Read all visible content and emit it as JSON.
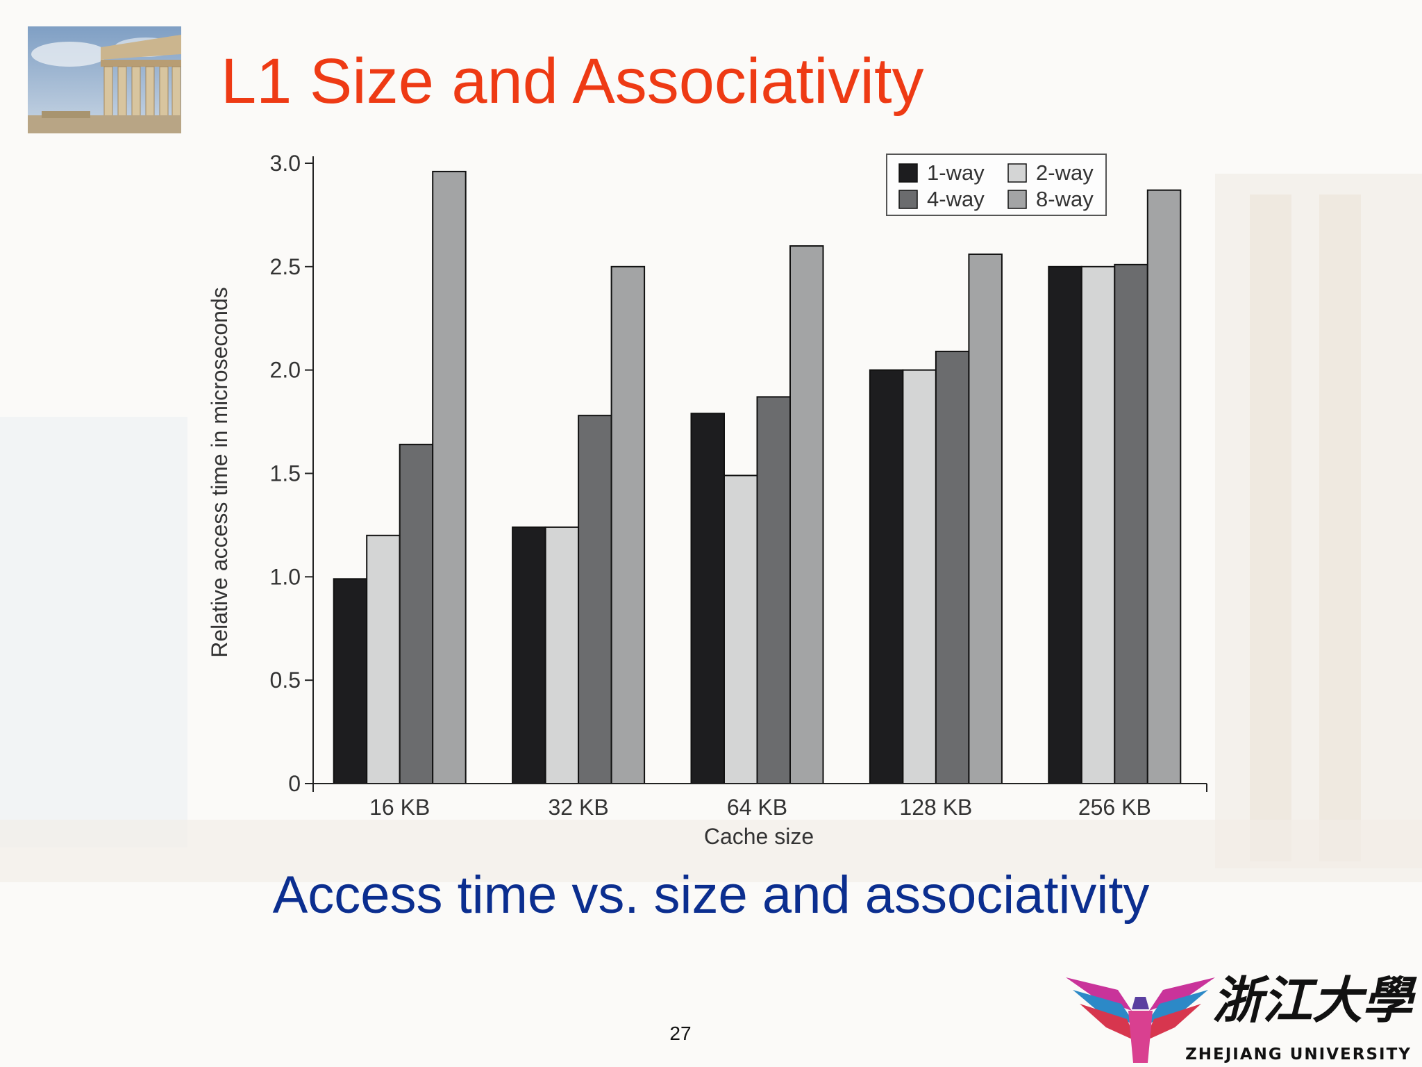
{
  "slide": {
    "title": "L1 Size and Associativity",
    "subtitle": "Access time vs. size and associativity",
    "page_number": "27",
    "logo_text": "ZHEJIANG UNIVERSITY",
    "logo_chinese": "浙江大學",
    "title_color": "#ee3a14",
    "subtitle_color": "#0b2e8f"
  },
  "chart_data": {
    "type": "bar",
    "title": "",
    "xlabel": "Cache size",
    "ylabel": "Relative access time in microseconds",
    "categories": [
      "16 KB",
      "32 KB",
      "64 KB",
      "128 KB",
      "256 KB"
    ],
    "ylim": [
      0,
      3.0
    ],
    "yticks": [
      "0",
      "0.5",
      "1.0",
      "1.5",
      "2.0",
      "2.5",
      "3.0"
    ],
    "legend_position": "top-right",
    "grid": false,
    "series": [
      {
        "name": "1-way",
        "color": "#1d1d1f",
        "values": [
          0.99,
          1.24,
          1.79,
          2.0,
          2.5
        ]
      },
      {
        "name": "2-way",
        "color": "#d4d5d5",
        "values": [
          1.2,
          1.24,
          1.49,
          2.0,
          2.5
        ]
      },
      {
        "name": "4-way",
        "color": "#6b6c6e",
        "values": [
          1.64,
          1.78,
          1.87,
          2.09,
          2.51
        ]
      },
      {
        "name": "8-way",
        "color": "#a3a4a5",
        "values": [
          2.96,
          2.5,
          2.6,
          2.56,
          2.87
        ]
      }
    ]
  }
}
